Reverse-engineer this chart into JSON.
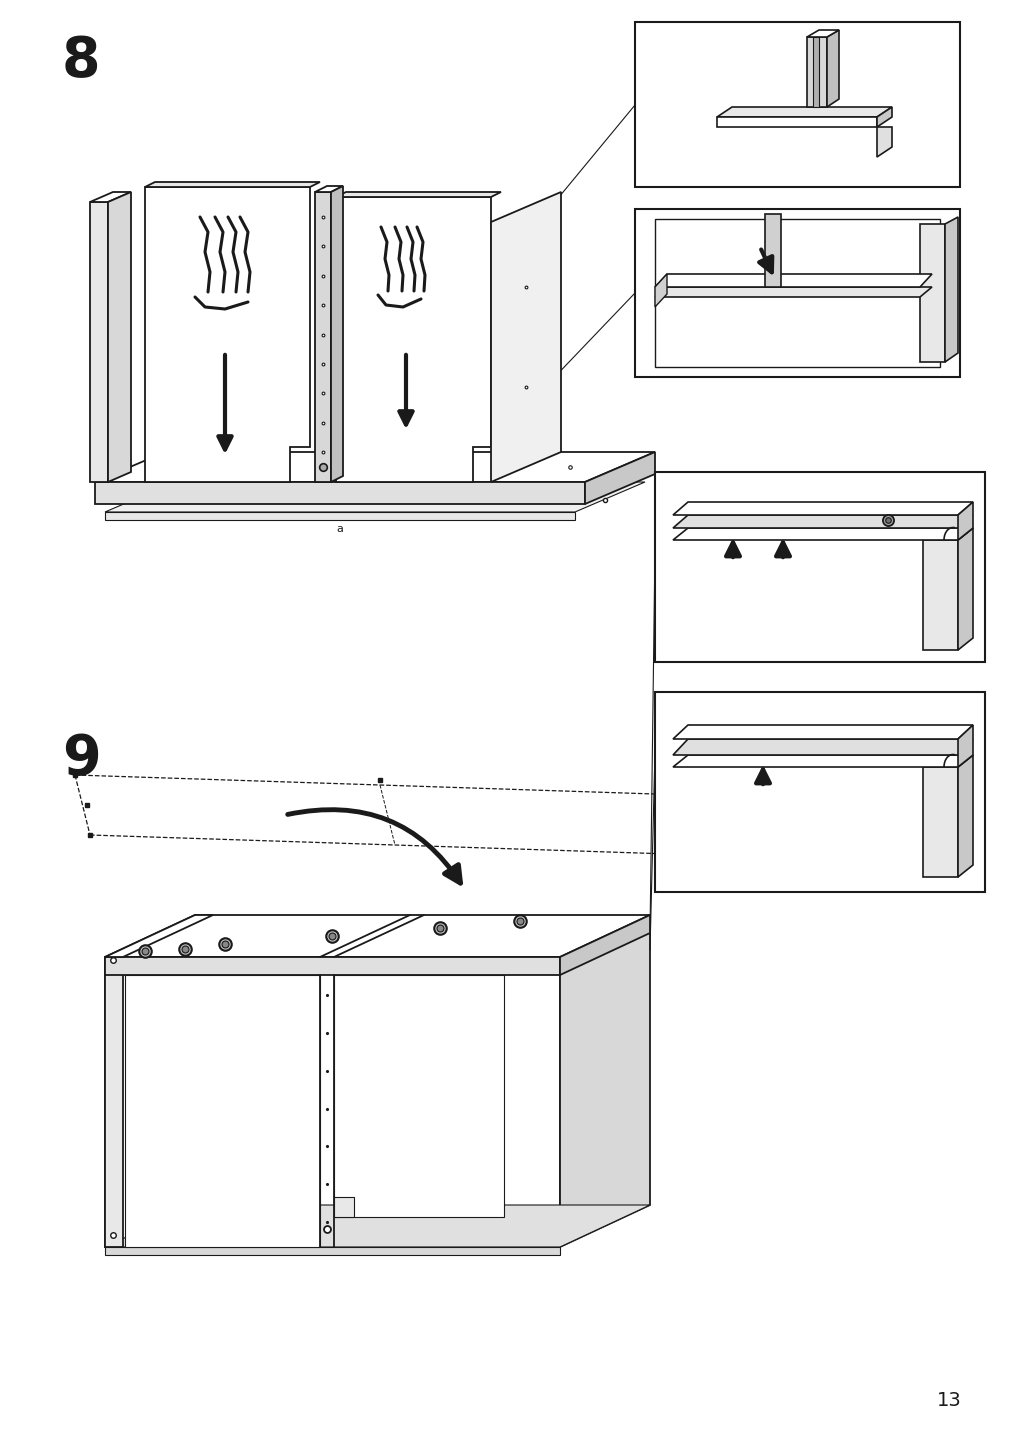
{
  "page_number": "13",
  "step8_label": "8",
  "step9_label": "9",
  "bg_color": "#ffffff",
  "lc": "#1a1a1a",
  "lw": 1.3,
  "tlw": 0.7,
  "figsize": [
    10.12,
    14.32
  ],
  "dpi": 100
}
